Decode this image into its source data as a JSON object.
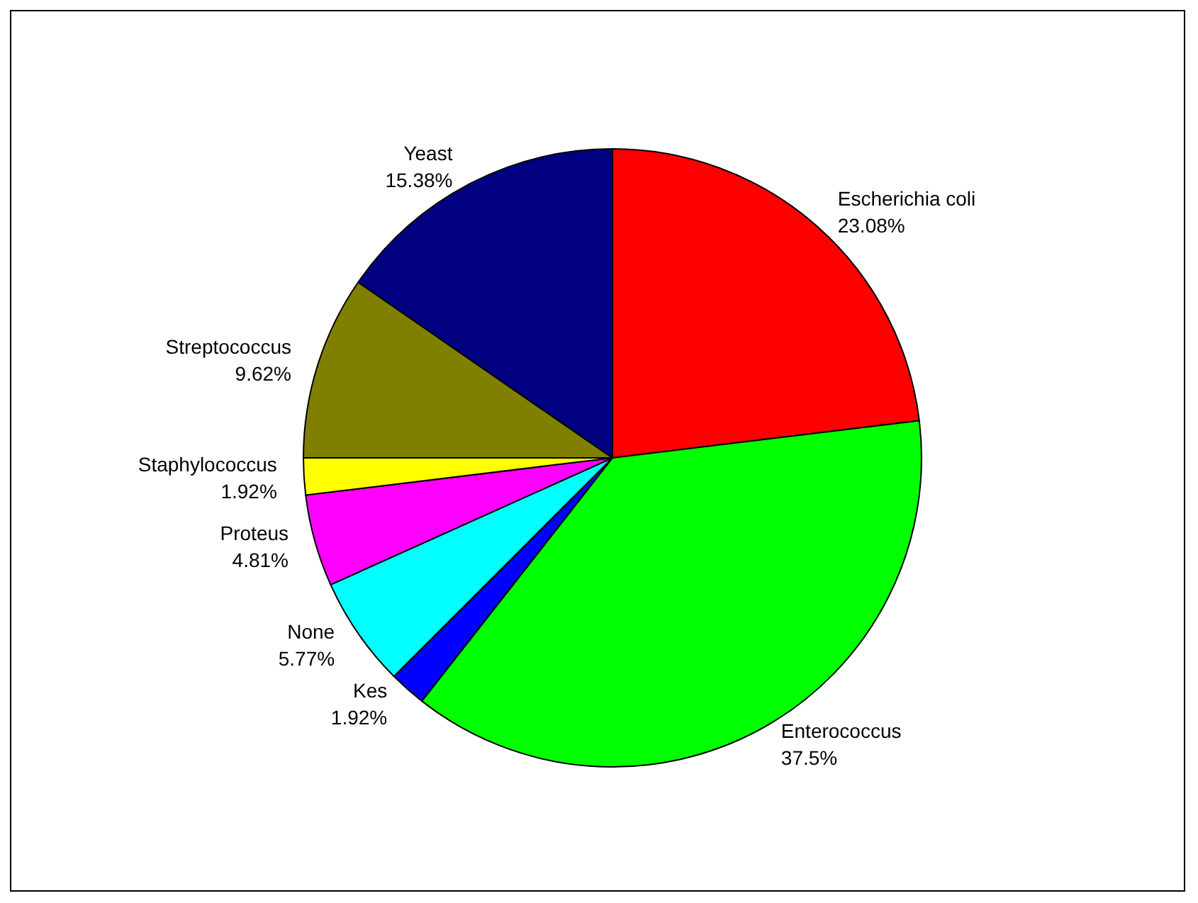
{
  "chart_data": {
    "type": "pie",
    "categories": [
      "Escherichia coli",
      "Enterococcus",
      "Kes",
      "None",
      "Proteus",
      "Staphylococcus",
      "Streptococcus",
      "Yeast"
    ],
    "values": [
      23.08,
      37.5,
      1.92,
      5.77,
      4.81,
      1.92,
      9.62,
      15.38
    ],
    "value_labels": [
      "23.08%",
      "37.5%",
      "1.92%",
      "5.77%",
      "4.81%",
      "1.92%",
      "9.62%",
      "15.38%"
    ],
    "colors": [
      "#ff0000",
      "#00ff00",
      "#0000ff",
      "#00ffff",
      "#ff00ff",
      "#ffff00",
      "#808000",
      "#000080"
    ],
    "legend": false
  }
}
